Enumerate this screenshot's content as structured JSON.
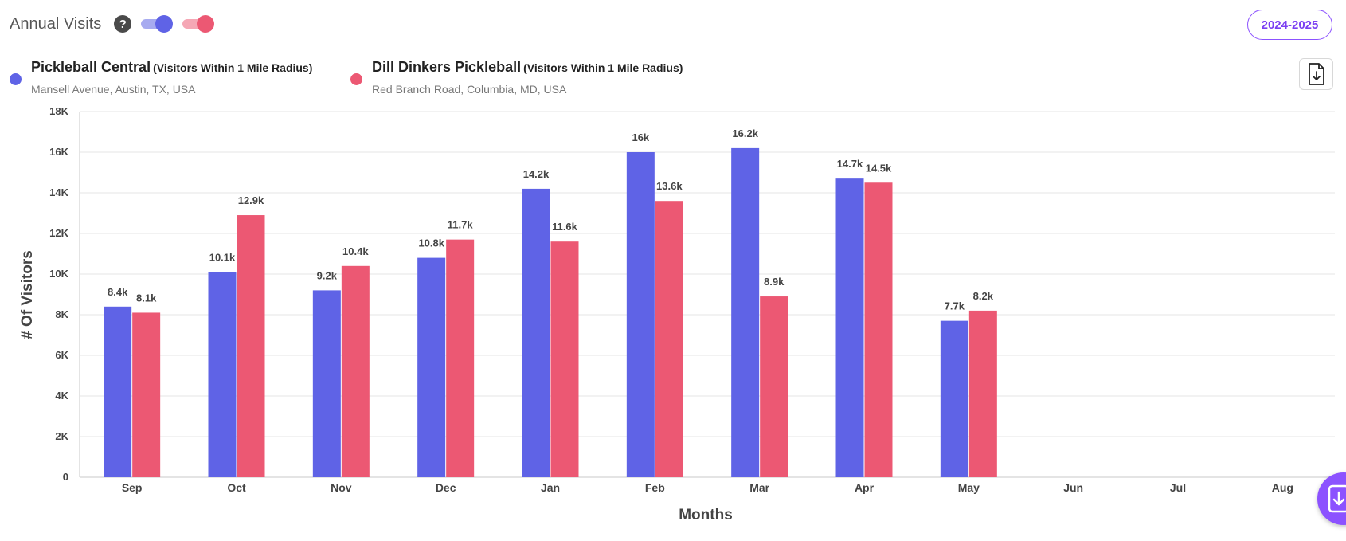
{
  "header": {
    "title": "Annual Visits",
    "help_icon": "help-icon",
    "period_label": "2024-2025"
  },
  "legend": [
    {
      "name": "Pickleball Central",
      "radius_note": "(Visitors Within 1 Mile Radius)",
      "address": "Mansell Avenue, Austin, TX, USA",
      "color": "#5f63e6"
    },
    {
      "name": "Dill Dinkers Pickleball",
      "radius_note": "(Visitors Within 1 Mile Radius)",
      "address": "Red Branch Road, Columbia, MD, USA",
      "color": "#ec5873"
    }
  ],
  "icons": {
    "download": "download-file-icon",
    "fab": "download-icon"
  },
  "chart_data": {
    "type": "bar",
    "categories": [
      "Sep",
      "Oct",
      "Nov",
      "Dec",
      "Jan",
      "Feb",
      "Mar",
      "Apr",
      "May",
      "Jun",
      "Jul",
      "Aug"
    ],
    "series": [
      {
        "name": "Pickleball Central",
        "color": "#5f63e6",
        "values": [
          8400,
          10100,
          9200,
          10800,
          14200,
          16000,
          16200,
          14700,
          7700,
          null,
          null,
          null
        ],
        "labels": [
          "8.4k",
          "10.1k",
          "9.2k",
          "10.8k",
          "14.2k",
          "16k",
          "16.2k",
          "14.7k",
          "7.7k",
          "",
          "",
          ""
        ]
      },
      {
        "name": "Dill Dinkers Pickleball",
        "color": "#ec5873",
        "values": [
          8100,
          12900,
          10400,
          11700,
          11600,
          13600,
          8900,
          14500,
          8200,
          null,
          null,
          null
        ],
        "labels": [
          "8.1k",
          "12.9k",
          "10.4k",
          "11.7k",
          "11.6k",
          "13.6k",
          "8.9k",
          "14.5k",
          "8.2k",
          "",
          "",
          ""
        ]
      }
    ],
    "ylabel": "# Of Visitors",
    "xlabel": "Months",
    "ylim": [
      0,
      18000
    ],
    "yticks": [
      0,
      2000,
      4000,
      6000,
      8000,
      10000,
      12000,
      14000,
      16000,
      18000
    ],
    "ytick_labels": [
      "0",
      "2K",
      "4K",
      "6K",
      "8K",
      "10K",
      "12K",
      "14K",
      "16K",
      "18K"
    ],
    "grid": true
  }
}
